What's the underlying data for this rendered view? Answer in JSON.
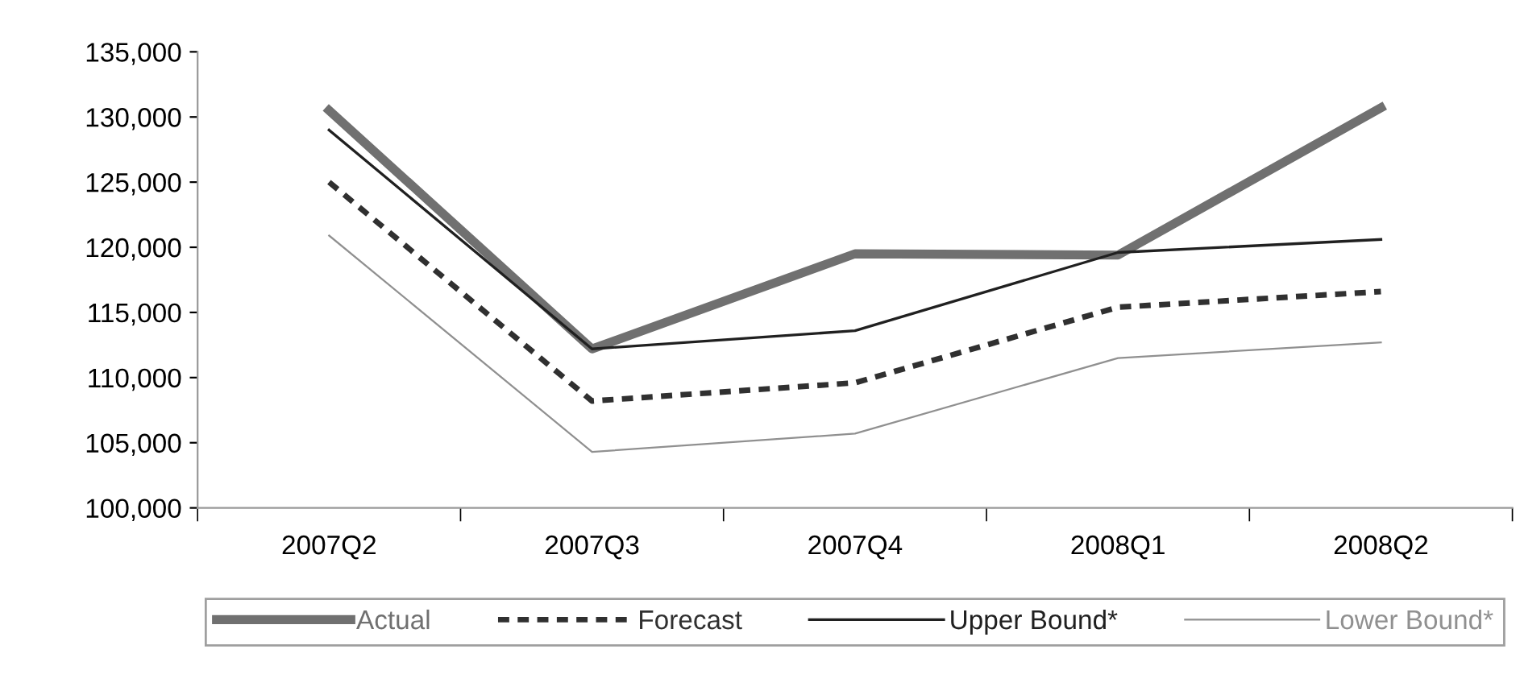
{
  "chart_data": {
    "type": "line",
    "categories": [
      "2007Q2",
      "2007Q3",
      "2007Q4",
      "2008Q1",
      "2008Q2"
    ],
    "series": [
      {
        "name": "Actual",
        "color": "#707070",
        "values": [
          130500,
          112200,
          119500,
          119400,
          130700
        ],
        "line_style": "solid"
      },
      {
        "name": "Forecast",
        "color": "#303030",
        "values": [
          125000,
          108200,
          109600,
          115400,
          116600
        ],
        "line_style": "dashed"
      },
      {
        "name": "Upper Bound*",
        "color": "#202020",
        "values": [
          129000,
          112200,
          113600,
          119600,
          120600
        ],
        "line_style": "solid"
      },
      {
        "name": "Lower Bound*",
        "color": "#909090",
        "values": [
          120900,
          104300,
          105700,
          111500,
          112700
        ],
        "line_style": "solid"
      }
    ],
    "ylim": [
      100000,
      135000
    ],
    "yticks": [
      {
        "value": 100000,
        "label": "100,000"
      },
      {
        "value": 105000,
        "label": "105,000"
      },
      {
        "value": 110000,
        "label": "110,000"
      },
      {
        "value": 115000,
        "label": "115,000"
      },
      {
        "value": 120000,
        "label": "120,000"
      },
      {
        "value": 125000,
        "label": "125,000"
      },
      {
        "value": 130000,
        "label": "130,000"
      },
      {
        "value": 135000,
        "label": "135,000"
      }
    ],
    "grid": false,
    "legend": "bottom",
    "marker": "none"
  }
}
